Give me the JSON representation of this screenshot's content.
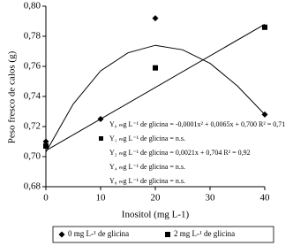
{
  "chart_data": {
    "type": "scatter",
    "x_label": "Inositol (mg L-1)",
    "y_label": "Peso fresco de calos (g)",
    "xlim": [
      0,
      40
    ],
    "xticks": [
      0,
      10,
      20,
      30,
      40
    ],
    "ylim": [
      0.68,
      0.8
    ],
    "yticks": [
      {
        "value": 0.68,
        "label": "0,68"
      },
      {
        "value": 0.7,
        "label": "0,70"
      },
      {
        "value": 0.72,
        "label": "0,72"
      },
      {
        "value": 0.74,
        "label": "0,74"
      },
      {
        "value": 0.76,
        "label": "0,76"
      },
      {
        "value": 0.78,
        "label": "0,78"
      },
      {
        "value": 0.8,
        "label": "0,80"
      }
    ],
    "series": [
      {
        "name": "0 mg L-¹ de glicina",
        "marker": "diamond",
        "color": "#000000",
        "x": [
          0,
          10,
          20,
          40
        ],
        "values": [
          0.71,
          0.725,
          0.792,
          0.728
        ]
      },
      {
        "name": "2 mg L-¹ de glicina",
        "marker": "square",
        "color": "#000000",
        "x": [
          0,
          20,
          40
        ],
        "values": [
          0.707,
          0.759,
          0.786
        ]
      }
    ],
    "fits": [
      {
        "x": [
          0,
          5,
          10,
          15,
          20,
          25,
          30,
          35,
          40
        ],
        "values": [
          0.703,
          0.735,
          0.757,
          0.769,
          0.774,
          0.771,
          0.762,
          0.747,
          0.728
        ]
      },
      {
        "x": [
          0,
          40
        ],
        "values": [
          0.704,
          0.788
        ]
      }
    ],
    "annotations": [
      "Y₀ ₘg L⁻¹ de glicina = -0,0001x² + 0,0065x + 0,700   R² = 0,71",
      "Y₁ ₘg L⁻¹ de glicina = n.s.",
      "Y₂ ₘg L⁻¹ de glicina = 0,0021x + 0,704    R² = 0,92",
      "Y₄ ₘg L⁻¹ de glicina = n.s.",
      "Y₈ ₘg L⁻¹ de glicina = n.s."
    ]
  }
}
